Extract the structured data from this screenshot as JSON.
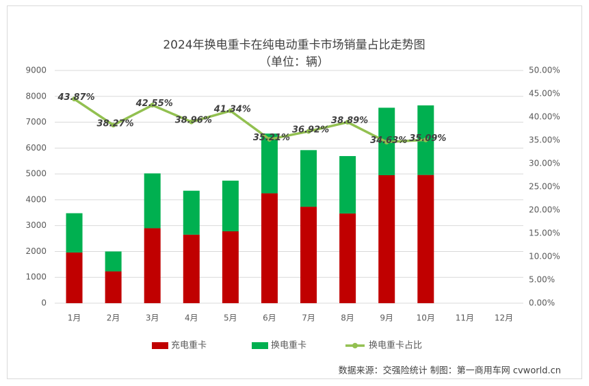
{
  "chart_data": {
    "type": "bar",
    "stacked": true,
    "title": "2024年换电重卡在纯电动重卡市场销量占比走势图",
    "subtitle": "（单位：辆）",
    "source": "数据来源：交强险统计 制图：第一商用车网 cvworld.cn",
    "categories": [
      "1月",
      "2月",
      "3月",
      "4月",
      "5月",
      "6月",
      "7月",
      "8月",
      "9月",
      "10月",
      "11月",
      "12月"
    ],
    "series": [
      {
        "name": "充电重卡",
        "color": "#c00000",
        "values": [
          1960,
          1230,
          2900,
          2650,
          2780,
          4250,
          3730,
          3470,
          4950,
          4960,
          null,
          null
        ]
      },
      {
        "name": "换电重卡",
        "color": "#00b050",
        "values": [
          1520,
          770,
          2120,
          1700,
          1960,
          2310,
          2190,
          2220,
          2610,
          2690,
          null,
          null
        ]
      },
      {
        "name": "换电重卡占比",
        "type": "line",
        "axis": "y2",
        "color": "#92c050",
        "values": [
          43.87,
          38.27,
          42.55,
          38.96,
          41.34,
          35.21,
          36.92,
          38.89,
          34.63,
          35.09,
          null,
          null
        ],
        "value_labels": [
          "43.87%",
          "38.27%",
          "42.55%",
          "38.96%",
          "41.34%",
          "35.21%",
          "36.92%",
          "38.89%",
          "34.63%",
          "35.09%",
          null,
          null
        ]
      }
    ],
    "ylim": [
      0,
      9000
    ],
    "yticks": [
      0,
      1000,
      2000,
      3000,
      4000,
      5000,
      6000,
      7000,
      8000,
      9000
    ],
    "y2lim": [
      0,
      50
    ],
    "y2ticks": [
      {
        "value": 0,
        "label": "0.00%"
      },
      {
        "value": 5,
        "label": "5.00%"
      },
      {
        "value": 10,
        "label": "10.00%"
      },
      {
        "value": 15,
        "label": "15.00%"
      },
      {
        "value": 20,
        "label": "20.00%"
      },
      {
        "value": 25,
        "label": "25.00%"
      },
      {
        "value": 30,
        "label": "30.00%"
      },
      {
        "value": 35,
        "label": "35.00%"
      },
      {
        "value": 40,
        "label": "40.00%"
      },
      {
        "value": 45,
        "label": "45.00%"
      },
      {
        "value": 50,
        "label": "50.00%"
      }
    ],
    "grid": true,
    "legend": "bottom"
  }
}
